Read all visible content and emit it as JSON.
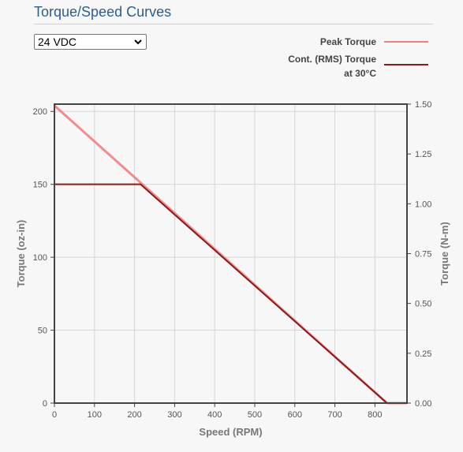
{
  "header": {
    "title": "Torque/Speed Curves"
  },
  "voltage_select": {
    "value": "24 VDC"
  },
  "legend": [
    {
      "label": "Peak Torque",
      "color": "#f08080"
    },
    {
      "label_line1": "Cont. (RMS) Torque",
      "label_line2": "at 30°C",
      "color": "#8b1a1a"
    }
  ],
  "chart_data": {
    "type": "line",
    "xlabel": "Speed (RPM)",
    "ylabel": "Torque (oz-in)",
    "ylabel_right": "Torque (N-m)",
    "xlim": [
      0,
      880
    ],
    "ylim": [
      0,
      205
    ],
    "ylim_right": [
      0,
      1.5
    ],
    "x_ticks": [
      "0",
      "100",
      "200",
      "300",
      "400",
      "500",
      "600",
      "700",
      "800"
    ],
    "y_ticks": [
      "0",
      "50",
      "100",
      "150",
      "200"
    ],
    "y_ticks_right": [
      "0.00",
      "0.25",
      "0.50",
      "0.75",
      "1.00",
      "1.25",
      "1.50"
    ],
    "grid": true,
    "legend_position": "top-right",
    "series": [
      {
        "name": "Peak Torque",
        "color": "#f08080",
        "x": [
          0,
          830,
          880
        ],
        "y": [
          204,
          0,
          0
        ]
      },
      {
        "name": "Cont. (RMS) Torque at 30°C",
        "color": "#8b1a1a",
        "x": [
          0,
          215,
          830,
          880
        ],
        "y": [
          150,
          150,
          0,
          0
        ]
      }
    ]
  }
}
